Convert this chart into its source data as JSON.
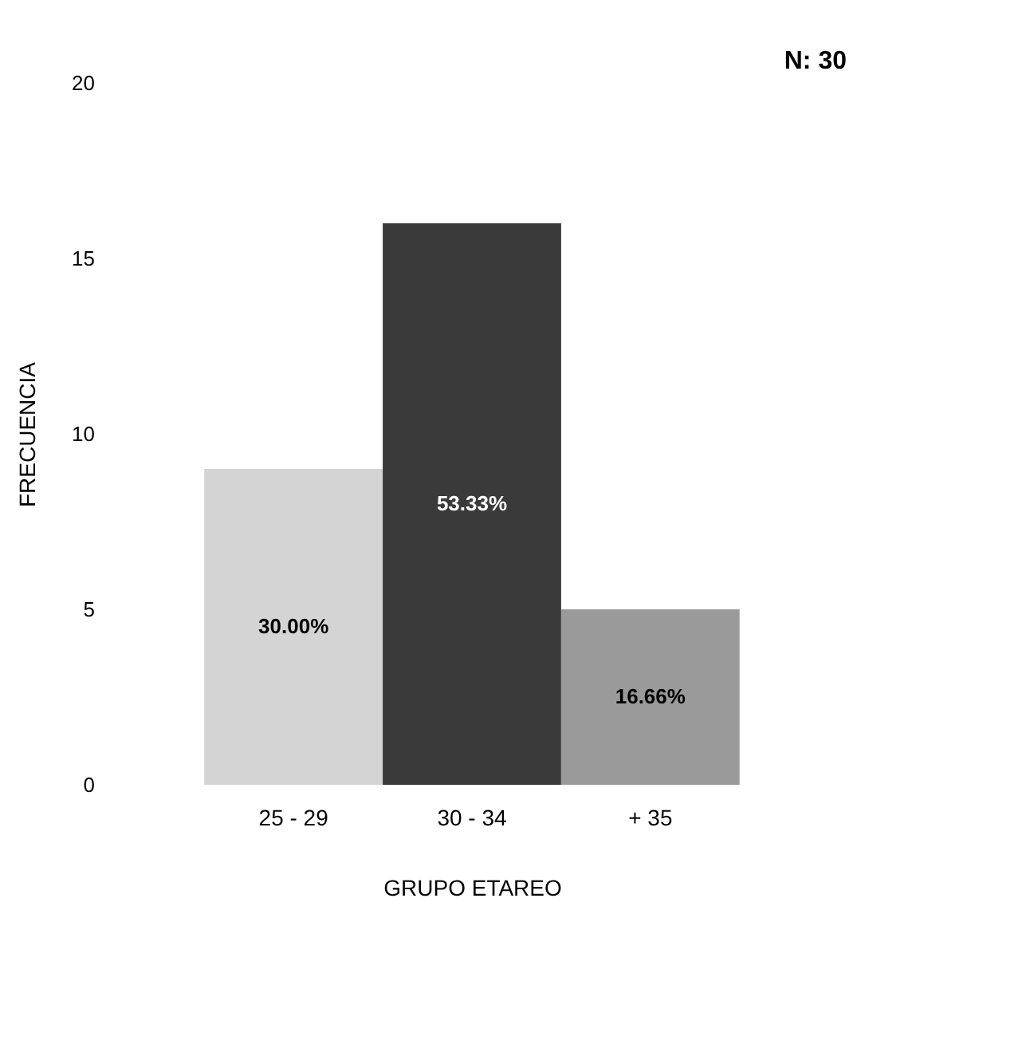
{
  "chart_data": {
    "type": "bar",
    "xlabel": "GRUPO ETAREO",
    "ylabel": "FRECUENCIA",
    "categories": [
      "25 - 29",
      "30 - 34",
      "+ 35"
    ],
    "values": [
      9,
      16,
      5
    ],
    "colors": [
      "#d4d4d4",
      "#3a3a3a",
      "#9a9a9a"
    ],
    "ylim": [
      0,
      20
    ],
    "yticks": [
      0,
      5,
      10,
      15,
      20
    ],
    "annotations": [
      "N: 30",
      "30.00%",
      "53.33%",
      "16.66%"
    ],
    "grid": false,
    "legend": false
  }
}
